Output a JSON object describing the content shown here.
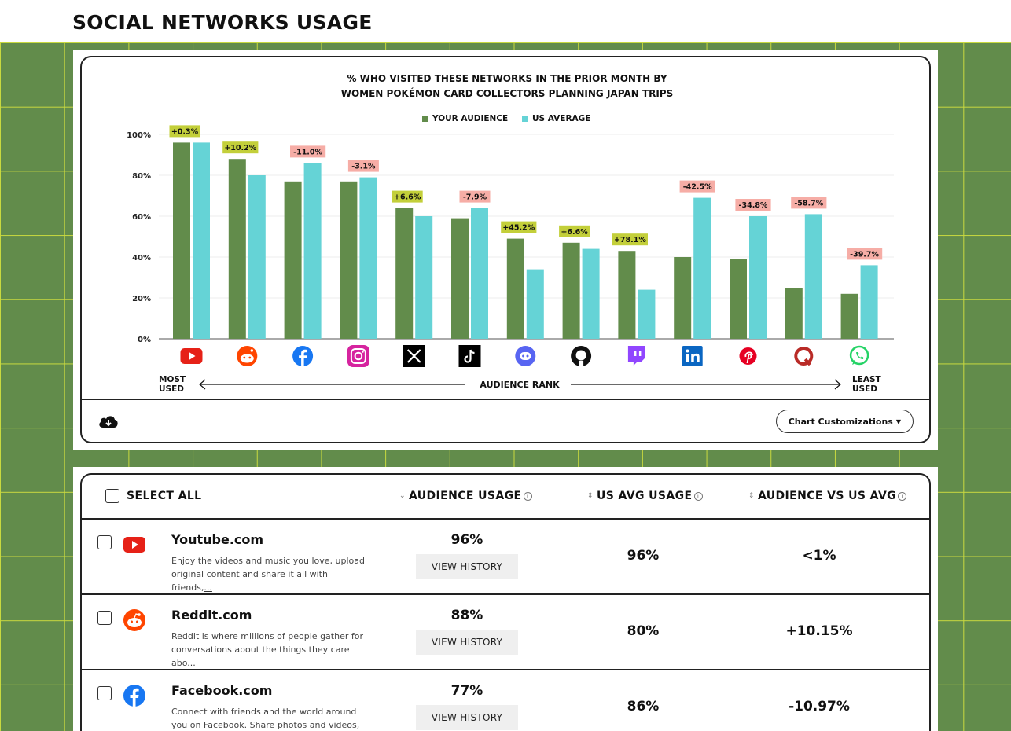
{
  "page_title": "SOCIAL NETWORKS USAGE",
  "colors": {
    "background_green": "#628c4b",
    "grid_line": "#c9d93f",
    "audience": "#628c4b",
    "us_average": "#65d3d6",
    "positive_badge": "#c3cf3a",
    "negative_badge": "#f6ada6"
  },
  "chart_data": {
    "type": "bar",
    "title_line1": "% WHO VISITED THESE NETWORKS IN THE PRIOR MONTH BY",
    "title_line2": "WOMEN POKÉMON CARD COLLECTORS PLANNING JAPAN TRIPS",
    "legend": [
      "YOUR AUDIENCE",
      "US AVERAGE"
    ],
    "legend_position": "top-center",
    "ylim": [
      0,
      100
    ],
    "yticks": [
      "0%",
      "20%",
      "40%",
      "60%",
      "80%",
      "100%"
    ],
    "grid": true,
    "categories": [
      "YouTube",
      "Reddit",
      "Facebook",
      "Instagram",
      "X",
      "TikTok",
      "Discord",
      "GitHub",
      "Twitch",
      "LinkedIn",
      "Pinterest",
      "Quora",
      "WhatsApp"
    ],
    "icons": [
      "youtube-icon",
      "reddit-icon",
      "facebook-icon",
      "instagram-icon",
      "x-icon",
      "tiktok-icon",
      "discord-icon",
      "github-icon",
      "twitch-icon",
      "linkedin-icon",
      "pinterest-icon",
      "quora-icon",
      "whatsapp-icon"
    ],
    "series": [
      {
        "name": "YOUR AUDIENCE",
        "values": [
          96,
          88,
          77,
          77,
          64,
          59,
          49,
          47,
          43,
          40,
          39,
          25,
          22
        ]
      },
      {
        "name": "US AVERAGE",
        "values": [
          96,
          80,
          86,
          79,
          60,
          64,
          34,
          44,
          24,
          69,
          60,
          61,
          36
        ]
      }
    ],
    "badges": [
      "+0.3%",
      "+10.2%",
      "-11.0%",
      "-3.1%",
      "+6.6%",
      "-7.9%",
      "+45.2%",
      "+6.6%",
      "+78.1%",
      "-42.5%",
      "-34.8%",
      "-58.7%",
      "-39.7%"
    ],
    "rank_axis": {
      "left_label_1": "MOST",
      "left_label_2": "USED",
      "center_label": "AUDIENCE RANK",
      "right_label_1": "LEAST",
      "right_label_2": "USED"
    }
  },
  "chart_footer": {
    "download_icon": "cloud-download-icon",
    "customize_label": "Chart Customizations"
  },
  "table": {
    "select_all": "SELECT ALL",
    "col_audience": "AUDIENCE USAGE",
    "col_us_avg": "US AVG USAGE",
    "col_diff": "AUDIENCE VS US AVG",
    "view_history": "VIEW HISTORY",
    "rows": [
      {
        "name": "Youtube.com",
        "desc": "Enjoy the videos and music you love, upload original content and share it all with friends,",
        "more": "...",
        "audience": "96%",
        "us_avg": "96%",
        "diff": "<1%",
        "icon": "youtube-icon"
      },
      {
        "name": "Reddit.com",
        "desc": "Reddit is where millions of people gather for conversations about the things they care abo",
        "more": "...",
        "audience": "88%",
        "us_avg": "80%",
        "diff": "+10.15%",
        "icon": "reddit-icon"
      },
      {
        "name": "Facebook.com",
        "desc": "Connect with friends and the world around you on Facebook. Share photos and videos, send m",
        "more": "...",
        "audience": "77%",
        "us_avg": "86%",
        "diff": "-10.97%",
        "icon": "facebook-icon"
      }
    ]
  }
}
